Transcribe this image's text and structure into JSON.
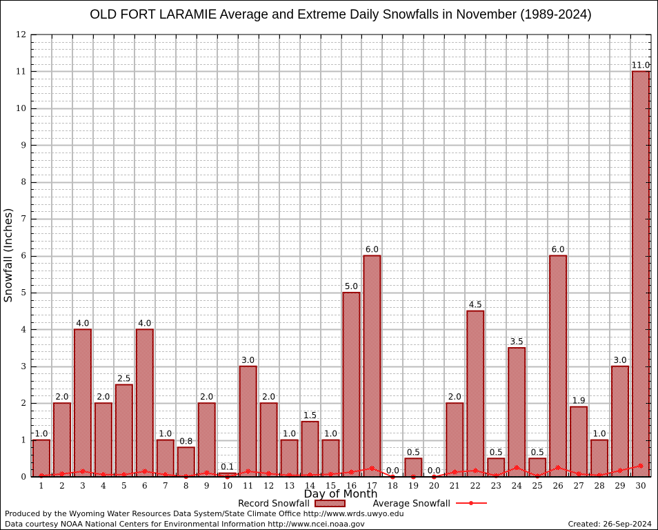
{
  "chart_data": {
    "type": "bar",
    "title": "OLD FORT LARAMIE Average and Extreme Daily Snowfalls in November (1989-2024)",
    "xlabel": "Day of Month",
    "ylabel": "Snowfall (Inches)",
    "ylim": [
      0,
      12
    ],
    "yticks": [
      "0",
      "1",
      "2",
      "3",
      "4",
      "5",
      "6",
      "7",
      "8",
      "9",
      "10",
      "11",
      "12"
    ],
    "grid": true,
    "categories": [
      "1",
      "2",
      "3",
      "4",
      "5",
      "6",
      "7",
      "8",
      "9",
      "10",
      "11",
      "12",
      "13",
      "14",
      "15",
      "16",
      "17",
      "18",
      "19",
      "20",
      "21",
      "22",
      "23",
      "24",
      "25",
      "26",
      "27",
      "28",
      "29",
      "30"
    ],
    "series": [
      {
        "name": "Record Snowfall",
        "type": "bar",
        "color": "#990000",
        "values": [
          1.0,
          2.0,
          4.0,
          2.0,
          2.5,
          4.0,
          1.0,
          0.8,
          2.0,
          0.1,
          3.0,
          2.0,
          1.0,
          1.5,
          1.0,
          5.0,
          6.0,
          0.0,
          0.5,
          0.0,
          2.0,
          4.5,
          0.5,
          3.5,
          0.5,
          6.0,
          1.9,
          1.0,
          3.0,
          11.0
        ],
        "labels": [
          "1.0",
          "2.0",
          "4.0",
          "2.0",
          "2.5",
          "4.0",
          "1.0",
          "0.8",
          "2.0",
          "0.1",
          "3.0",
          "2.0",
          "1.0",
          "1.5",
          "1.0",
          "5.0",
          "6.0",
          "0.0",
          "0.5",
          "0.0",
          "2.0",
          "4.5",
          "0.5",
          "3.5",
          "0.5",
          "6.0",
          "1.9",
          "1.0",
          "3.0",
          "11.0"
        ]
      },
      {
        "name": "Average Snowfall",
        "type": "line",
        "color": "#ff2020",
        "values": [
          0.03,
          0.08,
          0.15,
          0.06,
          0.06,
          0.15,
          0.06,
          0.01,
          0.11,
          0.0,
          0.15,
          0.09,
          0.04,
          0.05,
          0.07,
          0.13,
          0.23,
          0.0,
          0.0,
          0.0,
          0.13,
          0.17,
          0.03,
          0.25,
          0.02,
          0.25,
          0.08,
          0.04,
          0.17,
          0.3
        ]
      }
    ],
    "legend": {
      "position": "bottom-center",
      "items": [
        "Record Snowfall",
        "Average Snowfall"
      ]
    }
  },
  "footer": {
    "line1": "Produced by the Wyoming Water Resources Data System/State Climate Office http://www.wrds.uwyo.edu",
    "line2": "Data courtesy NOAA National Centers for Environmental Information http://www.ncei.noaa.gov",
    "created": "Created: 26-Sep-2024"
  }
}
